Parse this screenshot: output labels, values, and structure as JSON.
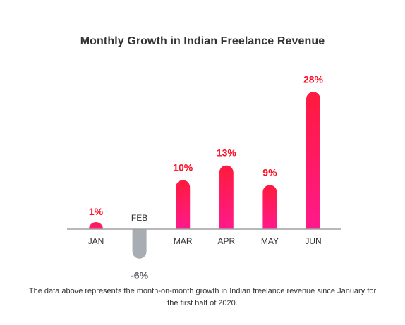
{
  "chart_data": {
    "type": "bar",
    "title": "Monthly Growth in Indian Freelance Revenue",
    "categories": [
      "JAN",
      "FEB",
      "MAR",
      "APR",
      "MAY",
      "JUN"
    ],
    "values": [
      1,
      -6,
      10,
      13,
      9,
      28
    ],
    "data_labels": [
      "1%",
      "-6%",
      "10%",
      "13%",
      "9%",
      "28%"
    ],
    "unit": "%",
    "xlabel": "",
    "ylabel": "",
    "ylim": [
      -6,
      28
    ],
    "grid": false,
    "legend": "none",
    "colors": {
      "positive_top": "#ff1a3d",
      "positive_bottom": "#ff1a8c",
      "positive_label": "#ff0d26",
      "negative_bar": "#a7adb3",
      "negative_label": "#555b61",
      "axis": "#a0a0a0"
    },
    "caption": "The data above represents the month-on-month growth in Indian freelance revenue since January for the first half of 2020."
  }
}
